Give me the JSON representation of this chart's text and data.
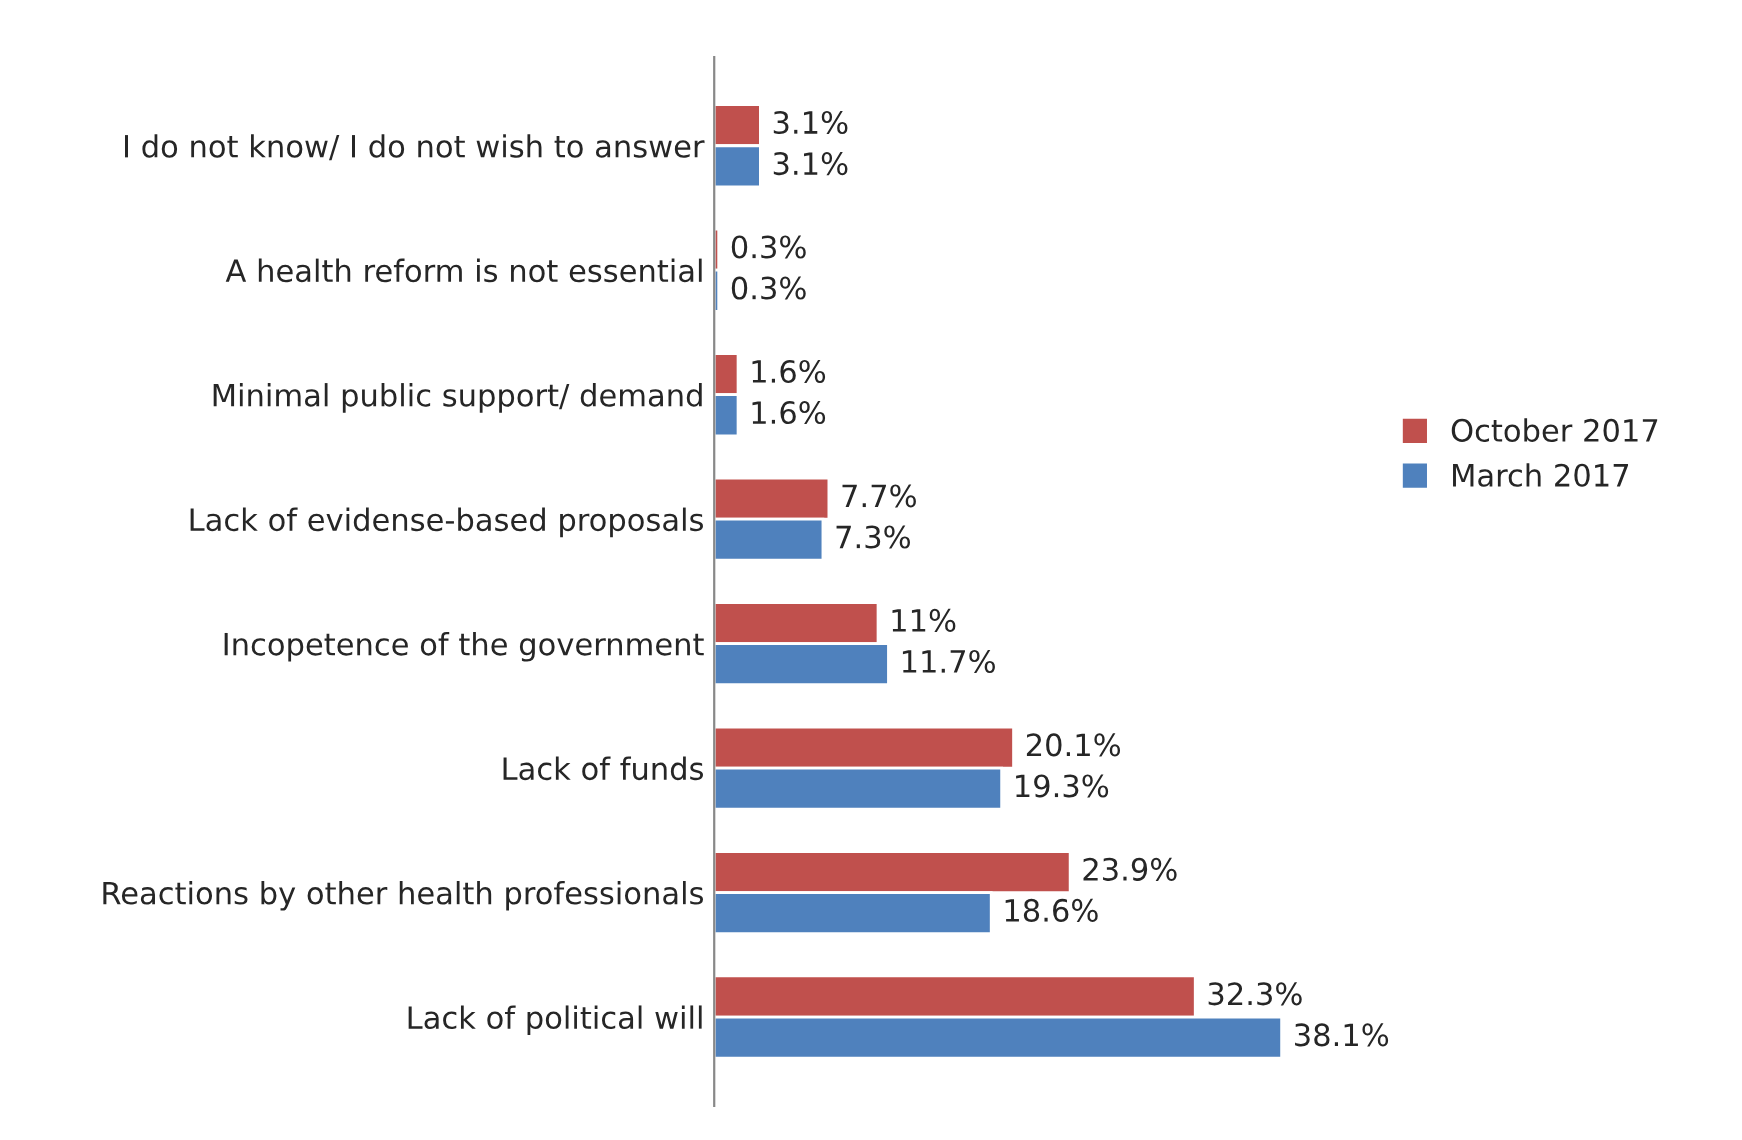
{
  "chart_data": {
    "type": "bar",
    "orientation": "horizontal",
    "categories": [
      "I do not know/ I do not wish to answer",
      "A health reform is not essential",
      "Minimal public support/ demand",
      "Lack of evidense-based proposals",
      "Incopetence of the government",
      "Lack of funds",
      "Reactions by other health professionals",
      "Lack of political will"
    ],
    "series": [
      {
        "name": "October 2017",
        "color": "#c0504d",
        "values": [
          3.1,
          0.3,
          1.6,
          7.7,
          11,
          20.1,
          23.9,
          32.3
        ],
        "value_labels": [
          "3.1%",
          "0.3%",
          "1.6%",
          "7.7%",
          "11%",
          "20.1%",
          "23.9%",
          "32.3%"
        ]
      },
      {
        "name": "March 2017",
        "color": "#4f81bd",
        "values": [
          3.1,
          0.3,
          1.6,
          7.3,
          11.7,
          19.3,
          18.6,
          38.1
        ],
        "value_labels": [
          "3.1%",
          "0.3%",
          "1.6%",
          "7.3%",
          "11.7%",
          "19.3%",
          "18.6%",
          "38.1%"
        ]
      }
    ],
    "legend": "right",
    "tick_labels": "y",
    "grid": false
  }
}
